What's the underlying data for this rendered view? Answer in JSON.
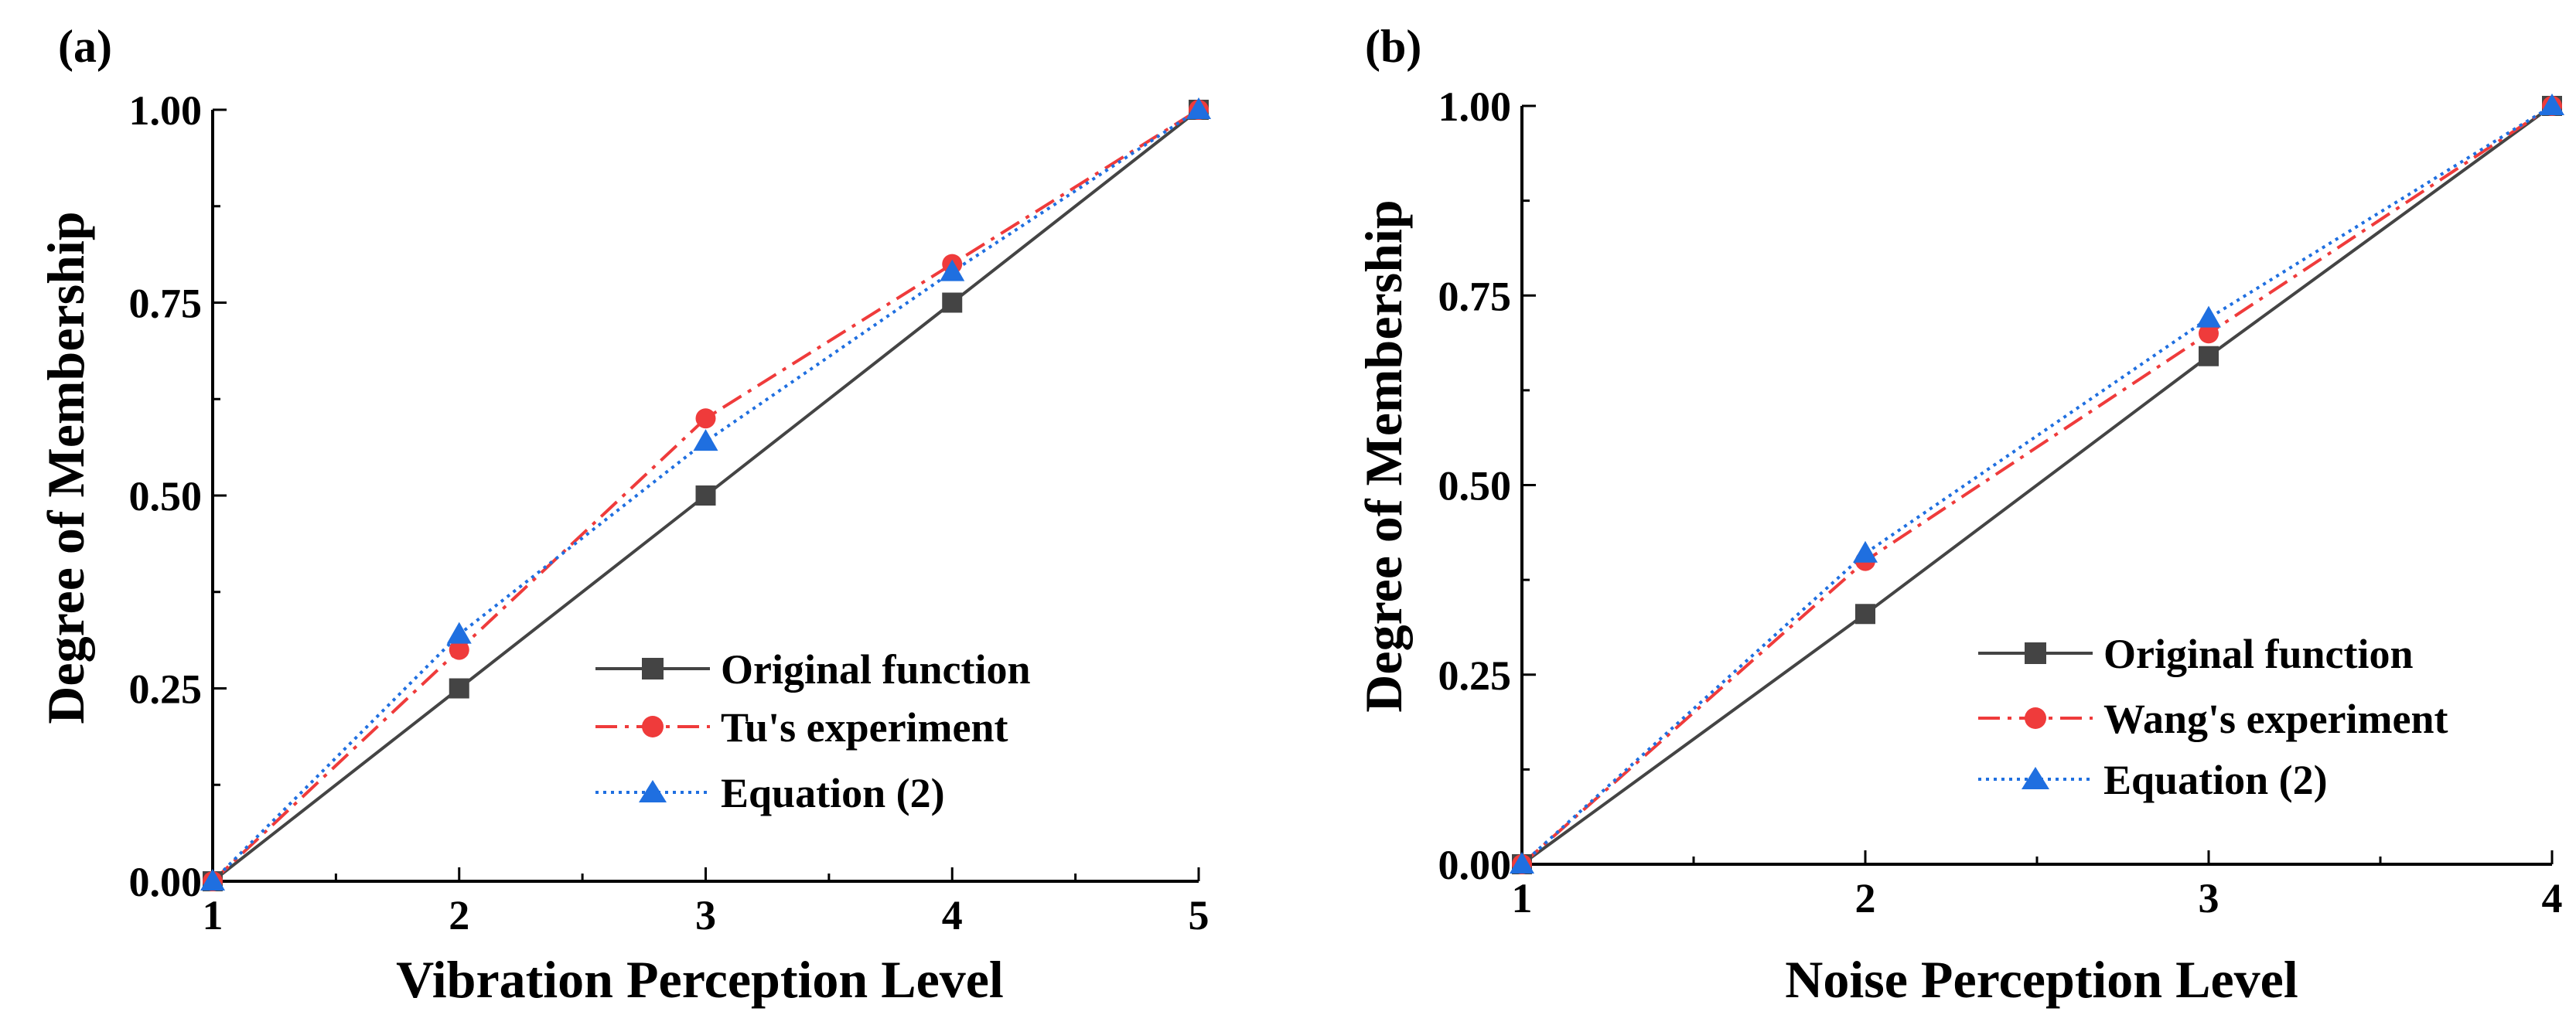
{
  "chart_data": [
    {
      "type": "line",
      "panel_label": "(a)",
      "xlabel": "Vibration Perception Level",
      "ylabel": "Degree of Membership",
      "xlim": [
        1,
        5
      ],
      "ylim": [
        0,
        1
      ],
      "x_ticks": [
        1,
        2,
        3,
        4,
        5
      ],
      "y_ticks": [
        0,
        0.25,
        0.5,
        0.75,
        1.0
      ],
      "x_tick_labels": [
        "1",
        "2",
        "3",
        "4",
        "5"
      ],
      "y_tick_labels": [
        "0.00",
        "0.25",
        "0.50",
        "0.75",
        "1.00"
      ],
      "legend_position": "bottom-right",
      "x": [
        1,
        2,
        3,
        4,
        5
      ],
      "series": [
        {
          "name": "Original function",
          "values": [
            0,
            0.25,
            0.5,
            0.75,
            1.0
          ],
          "color": "#444444",
          "marker": "square",
          "line_style": "solid"
        },
        {
          "name": "Tu's experiment",
          "values": [
            0,
            0.3,
            0.6,
            0.8,
            1.0
          ],
          "color": "#ef3b3b",
          "marker": "circle",
          "line_style": "dashdot"
        },
        {
          "name": "Equation (2)",
          "values": [
            0,
            0.32,
            0.57,
            0.79,
            1.0
          ],
          "color": "#1f6fe0",
          "marker": "triangle",
          "line_style": "dotted"
        }
      ]
    },
    {
      "type": "line",
      "panel_label": "(b)",
      "xlabel": "Noise Perception Level",
      "ylabel": "Degree of Membership",
      "xlim": [
        1,
        4
      ],
      "ylim": [
        0,
        1
      ],
      "x_ticks": [
        1,
        2,
        3,
        4
      ],
      "y_ticks": [
        0,
        0.25,
        0.5,
        0.75,
        1.0
      ],
      "x_tick_labels": [
        "1",
        "2",
        "3",
        "4"
      ],
      "y_tick_labels": [
        "0.00",
        "0.25",
        "0.50",
        "0.75",
        "1.00"
      ],
      "legend_position": "bottom-right",
      "x": [
        1,
        2,
        3,
        4
      ],
      "series": [
        {
          "name": "Original function",
          "values": [
            0,
            0.33,
            0.67,
            1.0
          ],
          "color": "#444444",
          "marker": "square",
          "line_style": "solid"
        },
        {
          "name": "Wang's experiment",
          "values": [
            0,
            0.4,
            0.7,
            1.0
          ],
          "color": "#ef3b3b",
          "marker": "circle",
          "line_style": "dashdot"
        },
        {
          "name": "Equation (2)",
          "values": [
            0,
            0.41,
            0.72,
            1.0
          ],
          "color": "#1f6fe0",
          "marker": "triangle",
          "line_style": "dotted"
        }
      ]
    }
  ]
}
